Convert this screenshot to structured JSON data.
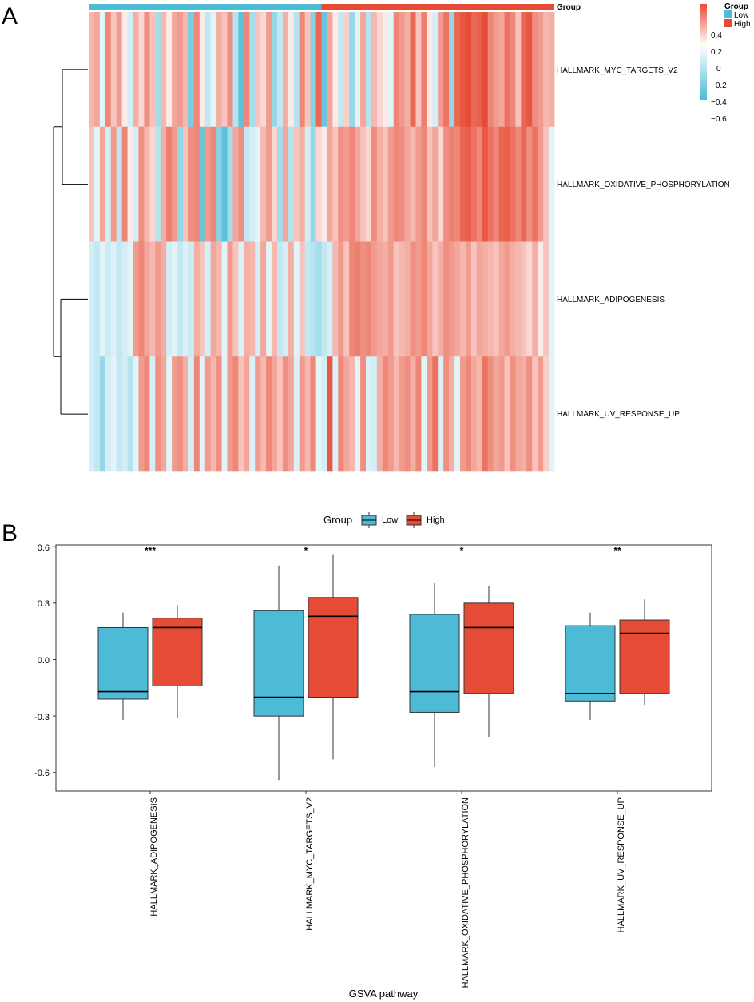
{
  "panel_a": {
    "letter": "A",
    "annotation_title": "Group",
    "legend_title": "Group",
    "legend_groups": [
      "Low",
      "High"
    ],
    "scale_labels": [
      "0.4",
      "0.2",
      "0",
      "−0.2",
      "−0.4",
      "−0.6"
    ],
    "rows": [
      "HALLMARK_MYC_TARGETS_V2",
      "HALLMARK_OXIDATIVE_PHOSPHORYLATION",
      "HALLMARK_ADIPOGENESIS",
      "HALLMARK_UV_RESPONSE_UP"
    ]
  },
  "panel_b": {
    "letter": "B",
    "legend_title": "Group",
    "legend_groups": [
      "Low",
      "High"
    ],
    "xlabel": "GSVA pathway",
    "yticks": [
      "0.6",
      "0.3",
      "0.0",
      "-0.3",
      "-0.6"
    ],
    "categories": [
      "HALLMARK_ADIPOGENESIS",
      "HALLMARK_MYC_TARGETS_V2",
      "HALLMARK_OXIDATIVE_PHOSPHORYLATION",
      "HALLMARK_UV_RESPONSE_UP"
    ],
    "significance": [
      "***",
      "*",
      "*",
      "**"
    ]
  },
  "colors": {
    "low": "#4DBBD5",
    "high": "#E64B35",
    "mid": "#ffffff"
  },
  "chart_data": [
    {
      "type": "heatmap",
      "title": "",
      "rows": [
        "HALLMARK_MYC_TARGETS_V2",
        "HALLMARK_OXIDATIVE_PHOSPHORYLATION",
        "HALLMARK_ADIPOGENESIS",
        "HALLMARK_UV_RESPONSE_UP"
      ],
      "n_samples": 84,
      "group_annotation": {
        "Low": 42,
        "High": 42
      },
      "color_range": [
        -0.6,
        0.45
      ],
      "legend_ticks": [
        0.4,
        0.2,
        0,
        -0.2,
        -0.4,
        -0.6
      ],
      "dendrogram": [
        [
          "HALLMARK_MYC_TARGETS_V2",
          "HALLMARK_OXIDATIVE_PHOSPHORYLATION"
        ],
        [
          "HALLMARK_ADIPOGENESIS",
          "HALLMARK_UV_RESPONSE_UP"
        ]
      ],
      "values": [
        [
          0.18,
          0.22,
          -0.1,
          0.3,
          0.15,
          0.25,
          0.05,
          -0.15,
          0.2,
          0.1,
          0.28,
          0.15,
          -0.3,
          0.18,
          0.05,
          0.22,
          0.25,
          0.18,
          -0.45,
          0.3,
          0.05,
          -0.2,
          -0.1,
          0.2,
          0.15,
          0.28,
          -0.25,
          -0.55,
          0.3,
          -0.3,
          0.15,
          0.1,
          0.25,
          -0.35,
          -0.2,
          0.2,
          0.05,
          -0.25,
          0.3,
          0.15,
          -0.4,
          0.38,
          -0.5,
          0.22,
          0.05,
          -0.2,
          0.12,
          -0.35,
          -0.1,
          0.22,
          -0.25,
          0.18,
          0.1,
          0.05,
          -0.1,
          0.3,
          0.25,
          0.2,
          0.38,
          0.15,
          0.32,
          0.05,
          -0.15,
          0.25,
          0.35,
          -0.35,
          0.38,
          0.42,
          0.45,
          0.38,
          0.4,
          0.45,
          0.3,
          0.25,
          0.22,
          0.35,
          0.3,
          0.15,
          0.38,
          0.42,
          0.28,
          0.25,
          0.18,
          0.2
        ],
        [
          0.15,
          -0.1,
          0.22,
          -0.15,
          0.25,
          -0.2,
          0.3,
          0.05,
          -0.15,
          0.28,
          0.18,
          0.1,
          -0.25,
          0.2,
          0.32,
          0.25,
          -0.35,
          0.15,
          0.28,
          0.3,
          -0.5,
          0.25,
          0.3,
          -0.4,
          -0.55,
          -0.3,
          0.22,
          0.28,
          -0.2,
          -0.15,
          -0.1,
          0.18,
          0.25,
          0.1,
          -0.3,
          0.22,
          -0.25,
          0.15,
          0.2,
          -0.15,
          -0.35,
          0.1,
          0.05,
          0.22,
          0.15,
          0.28,
          0.25,
          0.3,
          0.22,
          0.15,
          0.1,
          0.28,
          0.2,
          0.15,
          0.25,
          0.3,
          0.28,
          0.22,
          0.18,
          0.25,
          0.3,
          0.15,
          0.22,
          0.1,
          0.28,
          0.32,
          0.3,
          0.38,
          0.4,
          0.35,
          0.3,
          0.42,
          0.35,
          0.3,
          0.38,
          0.4,
          0.35,
          0.3,
          0.38,
          0.28,
          0.35,
          0.25,
          0.15,
          -0.1
        ],
        [
          -0.15,
          -0.2,
          -0.1,
          -0.18,
          -0.12,
          -0.2,
          -0.15,
          -0.1,
          0.25,
          0.3,
          0.22,
          0.18,
          0.25,
          0.2,
          -0.15,
          -0.1,
          -0.2,
          -0.12,
          -0.18,
          0.2,
          0.15,
          -0.15,
          0.22,
          0.18,
          -0.1,
          0.25,
          0.15,
          -0.12,
          0.2,
          0.18,
          -0.15,
          0.22,
          -0.1,
          0.18,
          -0.2,
          -0.15,
          0.2,
          -0.1,
          0.15,
          -0.2,
          -0.25,
          -0.3,
          -0.2,
          -0.15,
          0.18,
          0.25,
          0.15,
          0.3,
          0.32,
          0.28,
          0.3,
          0.25,
          0.22,
          0.2,
          0.25,
          0.15,
          0.18,
          0.2,
          0.28,
          0.25,
          0.3,
          0.22,
          0.15,
          0.2,
          0.28,
          0.25,
          0.22,
          0.18,
          0.25,
          0.15,
          0.22,
          0.2,
          0.18,
          0.15,
          0.22,
          0.25,
          0.2,
          0.18,
          0.15,
          0.1,
          0.2,
          0.05,
          0.15,
          -0.1
        ],
        [
          -0.15,
          -0.2,
          -0.35,
          -0.15,
          -0.1,
          -0.2,
          -0.15,
          -0.25,
          -0.1,
          0.25,
          0.3,
          -0.15,
          0.28,
          0.22,
          -0.1,
          0.25,
          0.28,
          0.2,
          -0.15,
          0.3,
          -0.1,
          0.25,
          0.18,
          0.28,
          -0.1,
          0.25,
          0.3,
          0.15,
          0.22,
          -0.12,
          0.25,
          0.18,
          0.3,
          0.22,
          0.15,
          0.28,
          0.22,
          -0.12,
          0.25,
          0.18,
          0.3,
          -0.1,
          -0.15,
          0.42,
          -0.12,
          0.3,
          0.22,
          0.18,
          -0.1,
          0.28,
          -0.12,
          -0.15,
          0.2,
          0.3,
          0.25,
          0.18,
          0.25,
          0.28,
          0.2,
          0.3,
          -0.1,
          0.25,
          0.35,
          -0.12,
          0.28,
          0.2,
          -0.1,
          0.25,
          0.3,
          0.22,
          0.18,
          0.35,
          0.28,
          0.22,
          0.25,
          0.15,
          0.28,
          0.22,
          0.2,
          0.28,
          0.15,
          0.25,
          0.12,
          -0.1
        ]
      ]
    },
    {
      "type": "box",
      "title": "",
      "xlabel": "GSVA pathway",
      "ylabel": "",
      "ylim": [
        -0.7,
        0.6
      ],
      "yticks": [
        0.6,
        0.3,
        0.0,
        -0.3,
        -0.6
      ],
      "categories": [
        "HALLMARK_ADIPOGENESIS",
        "HALLMARK_MYC_TARGETS_V2",
        "HALLMARK_OXIDATIVE_PHOSPHORYLATION",
        "HALLMARK_UV_RESPONSE_UP"
      ],
      "significance": [
        "***",
        "*",
        "*",
        "**"
      ],
      "series": [
        {
          "name": "Low",
          "boxes": [
            {
              "min": -0.32,
              "q1": -0.21,
              "median": -0.17,
              "q3": 0.17,
              "max": 0.25
            },
            {
              "min": -0.64,
              "q1": -0.3,
              "median": -0.2,
              "q3": 0.26,
              "max": 0.5
            },
            {
              "min": -0.57,
              "q1": -0.28,
              "median": -0.17,
              "q3": 0.24,
              "max": 0.41
            },
            {
              "min": -0.32,
              "q1": -0.22,
              "median": -0.18,
              "q3": 0.18,
              "max": 0.25
            }
          ]
        },
        {
          "name": "High",
          "boxes": [
            {
              "min": -0.31,
              "q1": -0.14,
              "median": 0.17,
              "q3": 0.22,
              "max": 0.29
            },
            {
              "min": -0.53,
              "q1": -0.2,
              "median": 0.23,
              "q3": 0.33,
              "max": 0.56
            },
            {
              "min": -0.41,
              "q1": -0.18,
              "median": 0.17,
              "q3": 0.3,
              "max": 0.39
            },
            {
              "min": -0.24,
              "q1": -0.18,
              "median": 0.14,
              "q3": 0.21,
              "max": 0.32
            }
          ]
        }
      ]
    }
  ]
}
